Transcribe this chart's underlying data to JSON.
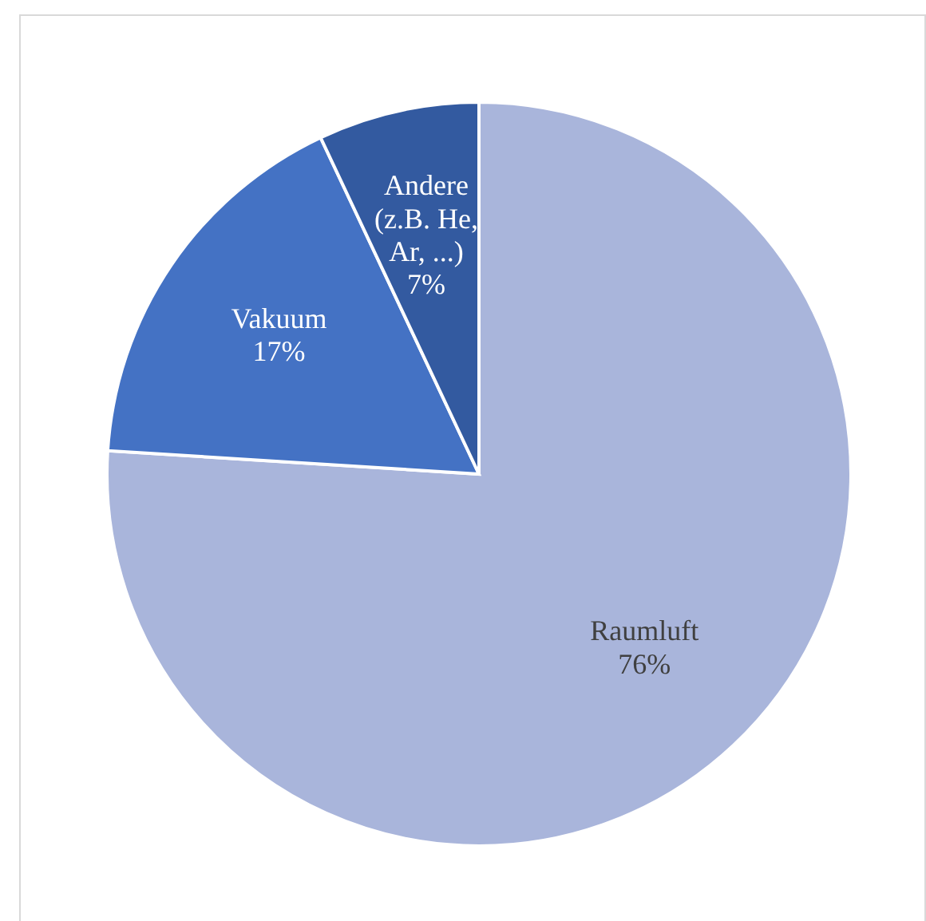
{
  "chart_data": {
    "type": "pie",
    "categories": [
      "Raumluft",
      "Vakuum",
      "Andere (z.B. He, Ar, ...)"
    ],
    "values": [
      76,
      17,
      7
    ],
    "colors": [
      "#a9b5db",
      "#4472c4",
      "#335aa0"
    ],
    "value_labels": [
      "76%",
      "17%",
      "7%"
    ]
  }
}
